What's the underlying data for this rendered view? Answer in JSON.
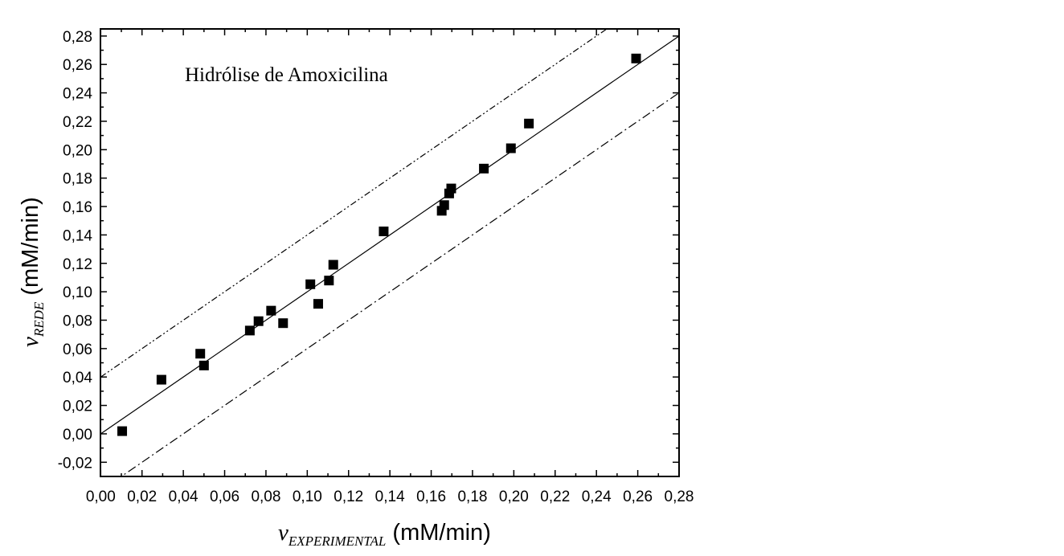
{
  "chart_data": {
    "type": "scatter",
    "title": "Hidrólise de Amoxicilina",
    "xlabel": {
      "var": "v",
      "sub": "EXPERIMENTAL",
      "unit": " (mM/min)"
    },
    "ylabel": {
      "var": "v",
      "sub": "REDE",
      "unit": " (mM/min)"
    },
    "xlim": [
      -0.00012,
      0.28
    ],
    "ylim": [
      -0.03,
      0.285
    ],
    "x_ticks": [
      "0,00",
      "0,02",
      "0,04",
      "0,06",
      "0,08",
      "0,10",
      "0,12",
      "0,14",
      "0,16",
      "0,18",
      "0,20",
      "0,22",
      "0,24",
      "0,26",
      "0,28"
    ],
    "y_ticks": [
      "-0,02",
      "0,00",
      "0,02",
      "0,04",
      "0,06",
      "0,08",
      "0,10",
      "0,12",
      "0,14",
      "0,16",
      "0,18",
      "0,20",
      "0,22",
      "0,24",
      "0,26",
      "0,28"
    ],
    "points": [
      {
        "x": 0.0104,
        "y": 0.0019
      },
      {
        "x": 0.0294,
        "y": 0.0381
      },
      {
        "x": 0.0482,
        "y": 0.0564
      },
      {
        "x": 0.05,
        "y": 0.0481
      },
      {
        "x": 0.0722,
        "y": 0.0727
      },
      {
        "x": 0.0764,
        "y": 0.0793
      },
      {
        "x": 0.0825,
        "y": 0.0867
      },
      {
        "x": 0.0883,
        "y": 0.0779
      },
      {
        "x": 0.1015,
        "y": 0.1053
      },
      {
        "x": 0.1053,
        "y": 0.0915
      },
      {
        "x": 0.1105,
        "y": 0.1079
      },
      {
        "x": 0.1126,
        "y": 0.119
      },
      {
        "x": 0.137,
        "y": 0.1425
      },
      {
        "x": 0.1651,
        "y": 0.157
      },
      {
        "x": 0.1663,
        "y": 0.161
      },
      {
        "x": 0.1687,
        "y": 0.1692
      },
      {
        "x": 0.1697,
        "y": 0.1727
      },
      {
        "x": 0.1855,
        "y": 0.1867
      },
      {
        "x": 0.1986,
        "y": 0.201
      },
      {
        "x": 0.2073,
        "y": 0.2184
      },
      {
        "x": 0.2592,
        "y": 0.2642
      }
    ],
    "lines": [
      {
        "style": "solid",
        "slope": 1.0,
        "intercept": 0.0
      },
      {
        "style": "dash-dot-dot",
        "slope": 1.0,
        "intercept": 0.04
      },
      {
        "style": "dash-dot",
        "slope": 1.0,
        "intercept": -0.04
      }
    ],
    "grid": false,
    "legend": "none"
  }
}
